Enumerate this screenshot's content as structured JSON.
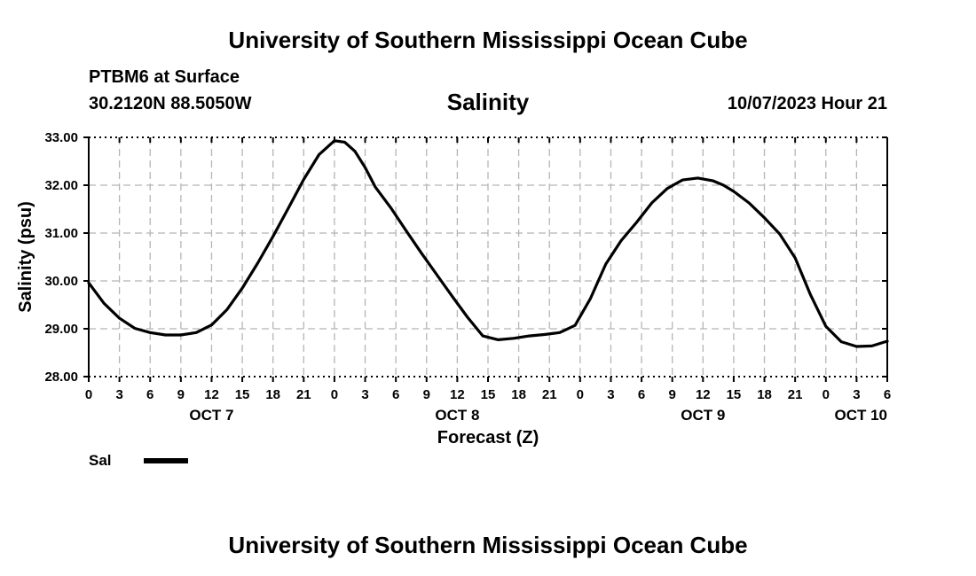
{
  "header": {
    "title": "University of Southern Mississippi Ocean Cube",
    "station": "PTBM6 at Surface",
    "coords": "30.2120N  88.5050W",
    "timestamp": "10/07/2023 Hour 21"
  },
  "footer": {
    "title": "University of Southern Mississippi Ocean Cube"
  },
  "legend": {
    "label": "Sal",
    "color": "#000000"
  },
  "chart_data": {
    "type": "line",
    "title": "Salinity",
    "xlabel": "Forecast (Z)",
    "ylabel": "Salinity (psu)",
    "ylim": [
      28.0,
      33.0
    ],
    "xlim": [
      0,
      78
    ],
    "y_ticks": [
      "28.00",
      "29.00",
      "30.00",
      "31.00",
      "32.00",
      "33.00"
    ],
    "x_tick_labels": [
      "0",
      "3",
      "6",
      "9",
      "12",
      "15",
      "18",
      "21",
      "0",
      "3",
      "6",
      "9",
      "12",
      "15",
      "18",
      "21",
      "0",
      "3",
      "6",
      "9",
      "12",
      "15",
      "18",
      "21",
      "0",
      "3",
      "6"
    ],
    "day_labels": [
      {
        "label": "OCT 7",
        "hour": 12
      },
      {
        "label": "OCT 8",
        "hour": 36
      },
      {
        "label": "OCT 9",
        "hour": 60
      },
      {
        "label": "OCT 10",
        "hour": 78
      }
    ],
    "grid": true,
    "series": [
      {
        "name": "Sal",
        "x": [
          0,
          1.5,
          3,
          4.5,
          6,
          7.5,
          9,
          10.5,
          12,
          13.5,
          15,
          16.5,
          18,
          19.5,
          21,
          22.5,
          24,
          25,
          26,
          27,
          28,
          29.5,
          31,
          32.5,
          34,
          35.5,
          37,
          38.5,
          40,
          41.5,
          43,
          44.5,
          46,
          47.5,
          49,
          50.5,
          52,
          53.5,
          55,
          56.5,
          58,
          59.5,
          61,
          62,
          63,
          64.5,
          66,
          67.5,
          69,
          70.5,
          72,
          73.5,
          75,
          76.5,
          78
        ],
        "values": [
          29.96,
          29.53,
          29.22,
          29.01,
          28.92,
          28.87,
          28.87,
          28.92,
          29.08,
          29.4,
          29.85,
          30.37,
          30.93,
          31.52,
          32.12,
          32.64,
          32.93,
          32.9,
          32.71,
          32.37,
          31.96,
          31.53,
          31.05,
          30.58,
          30.13,
          29.68,
          29.24,
          28.85,
          28.77,
          28.8,
          28.85,
          28.88,
          28.92,
          29.07,
          29.63,
          30.35,
          30.84,
          31.22,
          31.63,
          31.93,
          32.11,
          32.15,
          32.09,
          32.0,
          31.87,
          31.63,
          31.32,
          30.98,
          30.48,
          29.71,
          29.05,
          28.73,
          28.63,
          28.64,
          28.74
        ]
      }
    ]
  }
}
